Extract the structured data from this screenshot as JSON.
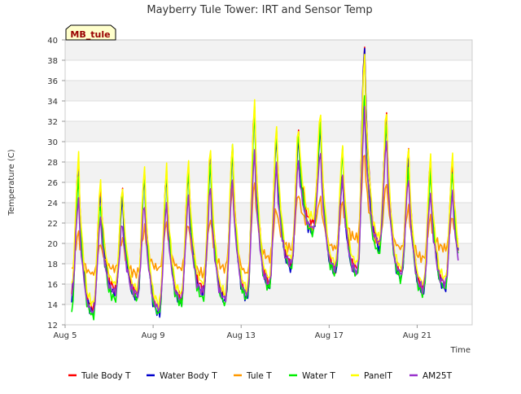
{
  "chart_data": {
    "type": "line",
    "title": "Mayberry Tule Tower: IRT and Sensor Temp",
    "xlabel": "Time",
    "ylabel": "Temperature (C)",
    "badge": "MB_tule",
    "xlim": [
      5.0,
      23.5
    ],
    "ylim": [
      12,
      40
    ],
    "yticks": [
      12,
      14,
      16,
      18,
      20,
      22,
      24,
      26,
      28,
      30,
      32,
      34,
      36,
      38,
      40
    ],
    "xticks": [
      {
        "value": 5,
        "label": "Aug 5"
      },
      {
        "value": 9,
        "label": "Aug 9"
      },
      {
        "value": 13,
        "label": "Aug 13"
      },
      {
        "value": 17,
        "label": "Aug 17"
      },
      {
        "value": 21,
        "label": "Aug 21"
      }
    ],
    "grid": true,
    "legend_position": "bottom",
    "x_start": 5.3,
    "x_step": 0.0625,
    "series": [
      {
        "name": "Tule Body T",
        "color": "#ff0000",
        "day_peaks": [
          28.0,
          25.5,
          25.0,
          27.0,
          27.0,
          27.5,
          28.5,
          29.5,
          33.5,
          31.0,
          31.0,
          32.0,
          27.0,
          39.5,
          32.5,
          29.0,
          28.0
        ],
        "night_mins": [
          15.0,
          13.5,
          15.5,
          15.0,
          13.5,
          14.5,
          15.5,
          14.8,
          15.0,
          16.0,
          18.0,
          22.0,
          17.5,
          17.5,
          20.0,
          17.0,
          15.5,
          16.0
        ]
      },
      {
        "name": "Water Body T",
        "color": "#0000cc",
        "day_peaks": [
          27.5,
          25.0,
          24.5,
          26.5,
          26.5,
          27.0,
          28.0,
          29.0,
          33.0,
          30.5,
          30.5,
          31.5,
          26.5,
          39.5,
          32.0,
          28.5,
          27.5
        ],
        "night_mins": [
          14.5,
          13.0,
          15.0,
          14.5,
          13.0,
          14.0,
          15.0,
          14.3,
          14.5,
          15.5,
          17.5,
          21.0,
          17.0,
          17.0,
          19.5,
          16.5,
          15.0,
          15.5
        ]
      },
      {
        "name": "Tule T",
        "color": "#ff9900",
        "day_peaks": [
          21.0,
          20.0,
          20.5,
          21.5,
          22.0,
          22.0,
          22.5,
          25.5,
          26.0,
          23.5,
          25.0,
          24.5,
          24.0,
          29.0,
          26.0,
          23.5,
          22.5
        ],
        "night_mins": [
          17.5,
          17.0,
          17.5,
          17.0,
          17.5,
          17.5,
          17.0,
          17.5,
          17.0,
          18.5,
          19.5,
          21.5,
          19.5,
          20.5,
          20.0,
          19.5,
          18.5,
          19.5
        ]
      },
      {
        "name": "Water T",
        "color": "#00ee00",
        "day_peaks": [
          26.5,
          24.0,
          25.5,
          27.0,
          27.0,
          27.0,
          28.0,
          29.5,
          33.0,
          31.0,
          31.0,
          32.0,
          29.0,
          34.5,
          32.0,
          27.5,
          27.0
        ],
        "night_mins": [
          13.0,
          12.8,
          14.5,
          14.5,
          13.0,
          14.0,
          14.5,
          14.0,
          14.5,
          15.5,
          17.5,
          21.0,
          17.0,
          16.8,
          19.0,
          16.5,
          15.0,
          15.5
        ]
      },
      {
        "name": "PanelT",
        "color": "#ffff00",
        "day_peaks": [
          28.5,
          26.0,
          25.5,
          27.5,
          27.5,
          28.0,
          29.5,
          30.0,
          34.0,
          31.5,
          31.5,
          33.0,
          29.5,
          38.5,
          33.0,
          29.5,
          28.5
        ],
        "night_mins": [
          15.5,
          14.0,
          16.0,
          15.5,
          14.0,
          15.0,
          16.0,
          15.0,
          15.5,
          16.5,
          18.5,
          22.5,
          18.0,
          18.0,
          20.5,
          17.5,
          16.0,
          16.5
        ]
      },
      {
        "name": "AM25T",
        "color": "#9933cc",
        "day_peaks": [
          24.5,
          22.5,
          22.0,
          24.0,
          24.0,
          24.5,
          25.5,
          26.5,
          29.0,
          27.5,
          28.0,
          29.0,
          26.5,
          33.0,
          30.0,
          26.5,
          25.0
        ],
        "night_mins": [
          14.5,
          13.2,
          15.2,
          15.0,
          13.5,
          14.5,
          15.2,
          14.5,
          15.0,
          16.0,
          18.0,
          21.5,
          17.5,
          17.2,
          20.0,
          17.0,
          15.5,
          16.0
        ]
      }
    ]
  }
}
